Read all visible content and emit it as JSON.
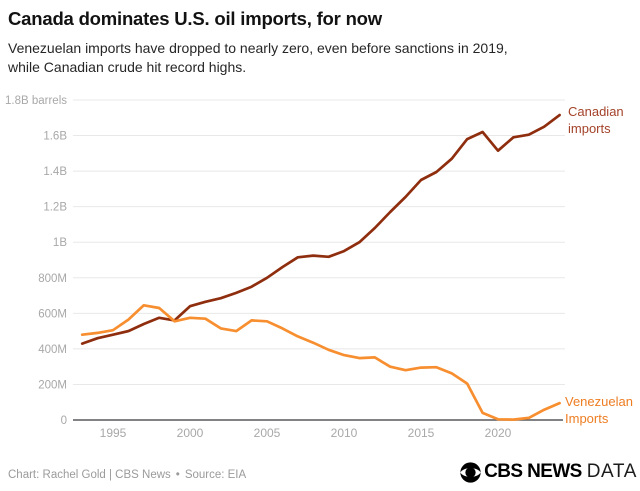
{
  "header": {
    "title": "Canada dominates U.S. oil imports, for now",
    "subtitle_line1": "Venezuelan imports have dropped to nearly zero, even before sanctions in 2019,",
    "subtitle_line2": "while Canadian crude hit record highs."
  },
  "chart_data": {
    "type": "line",
    "title": "Canada dominates U.S. oil imports, for now",
    "ylabel": "1.8B barrels",
    "values_unit": "million barrels per year",
    "grid": true,
    "legend_position": "right-of-line-ends",
    "ylim_millions": [
      0,
      1800
    ],
    "x": [
      1993,
      1994,
      1995,
      1996,
      1997,
      1998,
      1999,
      2000,
      2001,
      2002,
      2003,
      2004,
      2005,
      2006,
      2007,
      2008,
      2009,
      2010,
      2011,
      2012,
      2013,
      2014,
      2015,
      2016,
      2017,
      2018,
      2019,
      2020,
      2021,
      2022,
      2023,
      2024
    ],
    "xticks": [
      1995,
      2000,
      2005,
      2010,
      2015,
      2020
    ],
    "yticks": [
      {
        "value": 0,
        "label": "0"
      },
      {
        "value": 200,
        "label": "200M"
      },
      {
        "value": 400,
        "label": "400M"
      },
      {
        "value": 600,
        "label": "600M"
      },
      {
        "value": 800,
        "label": "800M"
      },
      {
        "value": 1000,
        "label": "1B"
      },
      {
        "value": 1200,
        "label": "1.2B"
      },
      {
        "value": 1400,
        "label": "1.4B"
      },
      {
        "value": 1600,
        "label": "1.6B"
      },
      {
        "value": 1800,
        "label": "1.8B barrels"
      }
    ],
    "series": [
      {
        "name": "Canadian imports",
        "label_lines": [
          "Canadian",
          "imports"
        ],
        "color": "#8f2e0e",
        "label_color": "#a4432a",
        "values": [
          430,
          460,
          480,
          500,
          540,
          575,
          560,
          640,
          665,
          685,
          715,
          750,
          800,
          860,
          915,
          925,
          918,
          950,
          1000,
          1080,
          1170,
          1255,
          1350,
          1395,
          1470,
          1580,
          1620,
          1515,
          1590,
          1605,
          1650,
          1715
        ]
      },
      {
        "name": "Venezuelan Imports",
        "label_lines": [
          "Venezuelan",
          "Imports"
        ],
        "color": "#f78e2f",
        "label_color": "#ee7d22",
        "values": [
          480,
          490,
          505,
          565,
          645,
          630,
          555,
          575,
          570,
          515,
          500,
          560,
          555,
          515,
          470,
          435,
          395,
          365,
          348,
          352,
          300,
          280,
          295,
          297,
          262,
          205,
          40,
          4,
          2,
          12,
          58,
          95
        ]
      }
    ]
  },
  "colors": {
    "canadian_line": "#8f2e0e",
    "canadian_label": "#a4432a",
    "venezuelan_line": "#f78e2f",
    "venezuelan_label": "#ee7d22",
    "grid": "#e8e8e8",
    "axis": "#58595b",
    "tick_text": "#a8a8a8",
    "footer_text": "#9b9b9b",
    "title_text": "#121212",
    "subtitle_text": "#262626"
  },
  "footer": {
    "credit": "Chart: Rachel Gold | CBS News",
    "bullet": "•",
    "source": "Source: EIA",
    "logo_cbs": "CBS NEWS",
    "logo_data": "DATA"
  }
}
